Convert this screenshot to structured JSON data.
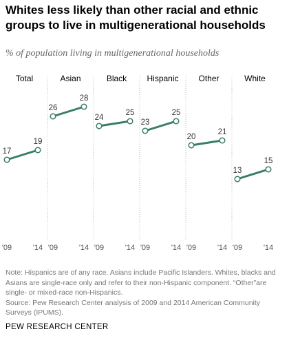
{
  "title": "Whites less likely than other racial and ethnic groups to live in multigenerational households",
  "subtitle": "% of population living in multigenerational households",
  "chart_data": {
    "type": "line",
    "x": [
      "'09",
      "'14"
    ],
    "ylim": [
      0,
      30
    ],
    "panels": [
      {
        "name": "Total",
        "values": [
          17,
          19
        ]
      },
      {
        "name": "Asian",
        "values": [
          26,
          28
        ]
      },
      {
        "name": "Black",
        "values": [
          24,
          25
        ]
      },
      {
        "name": "Hispanic",
        "values": [
          23,
          25
        ]
      },
      {
        "name": "Other",
        "values": [
          20,
          21
        ]
      },
      {
        "name": "White",
        "values": [
          13,
          15
        ]
      }
    ],
    "colors": {
      "line": "#3a7d6b",
      "marker_fill": "#ffffff",
      "divider": "#bbbbbb"
    }
  },
  "notes": [
    "Note: Hispanics are of any race. Asians include Pacific Islanders. Whites, blacks and Asians are single-race only and refer to their non-Hispanic component. “Other”are single- or mixed-race non-Hispanics.",
    "Source: Pew Research Center analysis of 2009 and 2014 American Community Surveys (IPUMS)."
  ],
  "footer": "PEW RESEARCH CENTER"
}
